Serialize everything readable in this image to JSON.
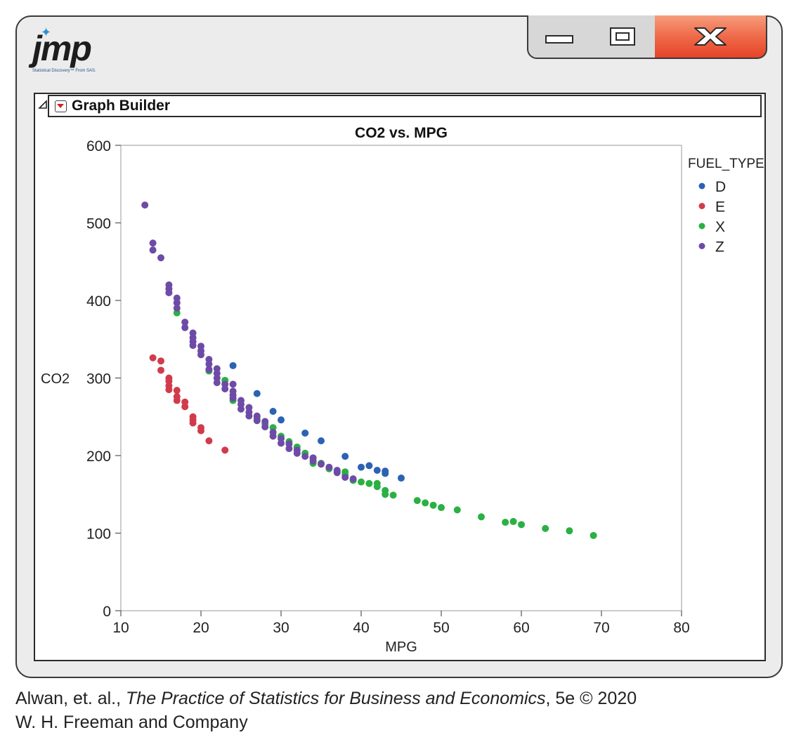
{
  "app": {
    "logo_text": "jmp",
    "logo_tagline": "Statistical Discovery™ From SAS."
  },
  "window_controls": {
    "minimize_icon": "minimize-icon",
    "maximize_icon": "maximize-icon",
    "close_icon": "close-x-icon",
    "close_color": "#e64327"
  },
  "graph_builder": {
    "title": "Graph Builder"
  },
  "chart_data": {
    "type": "scatter",
    "title": "CO2 vs. MPG",
    "xlabel": "MPG",
    "ylabel": "CO2",
    "xlim": [
      10,
      80
    ],
    "ylim": [
      0,
      600
    ],
    "xticks": [
      10,
      20,
      30,
      40,
      50,
      60,
      70,
      80
    ],
    "yticks": [
      0,
      100,
      200,
      300,
      400,
      500,
      600
    ],
    "grid": false,
    "legend": {
      "title": "FUEL_TYPE",
      "placement": "right"
    },
    "series": [
      {
        "name": "D",
        "color": "#2b62b3",
        "points": [
          [
            24,
            316
          ],
          [
            27,
            280
          ],
          [
            29,
            257
          ],
          [
            30,
            246
          ],
          [
            33,
            229
          ],
          [
            35,
            219
          ],
          [
            38,
            199
          ],
          [
            40,
            185
          ],
          [
            41,
            187
          ],
          [
            42,
            181
          ],
          [
            43,
            180
          ],
          [
            43,
            177
          ],
          [
            45,
            171
          ]
        ]
      },
      {
        "name": "E",
        "color": "#d23b4b",
        "points": [
          [
            14,
            326
          ],
          [
            15,
            322
          ],
          [
            15,
            310
          ],
          [
            16,
            300
          ],
          [
            16,
            296
          ],
          [
            16,
            290
          ],
          [
            16,
            285
          ],
          [
            17,
            284
          ],
          [
            17,
            276
          ],
          [
            17,
            271
          ],
          [
            18,
            269
          ],
          [
            18,
            263
          ],
          [
            19,
            250
          ],
          [
            19,
            246
          ],
          [
            19,
            242
          ],
          [
            20,
            236
          ],
          [
            20,
            232
          ],
          [
            21,
            219
          ],
          [
            23,
            207
          ]
        ]
      },
      {
        "name": "X",
        "color": "#2ab043",
        "points": [
          [
            17,
            384
          ],
          [
            21,
            309
          ],
          [
            23,
            297
          ],
          [
            24,
            271
          ],
          [
            27,
            248
          ],
          [
            28,
            241
          ],
          [
            29,
            236
          ],
          [
            30,
            225
          ],
          [
            31,
            218
          ],
          [
            32,
            211
          ],
          [
            33,
            203
          ],
          [
            34,
            197
          ],
          [
            34,
            190
          ],
          [
            35,
            190
          ],
          [
            36,
            183
          ],
          [
            37,
            180
          ],
          [
            38,
            179
          ],
          [
            38,
            175
          ],
          [
            39,
            168
          ],
          [
            40,
            166
          ],
          [
            41,
            164
          ],
          [
            42,
            164
          ],
          [
            42,
            160
          ],
          [
            43,
            155
          ],
          [
            43,
            150
          ],
          [
            44,
            149
          ],
          [
            47,
            142
          ],
          [
            48,
            139
          ],
          [
            49,
            136
          ],
          [
            50,
            133
          ],
          [
            52,
            130
          ],
          [
            55,
            121
          ],
          [
            58,
            114
          ],
          [
            59,
            115
          ],
          [
            60,
            111
          ],
          [
            63,
            106
          ],
          [
            66,
            103
          ],
          [
            69,
            97
          ]
        ]
      },
      {
        "name": "Z",
        "color": "#6d4ba6",
        "points": [
          [
            13,
            523
          ],
          [
            14,
            474
          ],
          [
            14,
            465
          ],
          [
            15,
            455
          ],
          [
            16,
            420
          ],
          [
            16,
            415
          ],
          [
            16,
            410
          ],
          [
            17,
            403
          ],
          [
            17,
            397
          ],
          [
            17,
            390
          ],
          [
            18,
            372
          ],
          [
            18,
            365
          ],
          [
            19,
            358
          ],
          [
            19,
            352
          ],
          [
            19,
            347
          ],
          [
            19,
            342
          ],
          [
            20,
            341
          ],
          [
            20,
            335
          ],
          [
            20,
            330
          ],
          [
            21,
            324
          ],
          [
            21,
            318
          ],
          [
            21,
            311
          ],
          [
            22,
            312
          ],
          [
            22,
            306
          ],
          [
            22,
            300
          ],
          [
            22,
            294
          ],
          [
            23,
            292
          ],
          [
            23,
            286
          ],
          [
            24,
            292
          ],
          [
            24,
            283
          ],
          [
            24,
            278
          ],
          [
            24,
            274
          ],
          [
            25,
            271
          ],
          [
            25,
            266
          ],
          [
            25,
            260
          ],
          [
            26,
            262
          ],
          [
            26,
            256
          ],
          [
            26,
            251
          ],
          [
            27,
            251
          ],
          [
            27,
            245
          ],
          [
            28,
            244
          ],
          [
            28,
            237
          ],
          [
            29,
            230
          ],
          [
            29,
            225
          ],
          [
            30,
            222
          ],
          [
            30,
            216
          ],
          [
            31,
            215
          ],
          [
            31,
            209
          ],
          [
            32,
            207
          ],
          [
            32,
            203
          ],
          [
            33,
            199
          ],
          [
            34,
            197
          ],
          [
            34,
            193
          ],
          [
            35,
            189
          ],
          [
            36,
            185
          ],
          [
            37,
            181
          ],
          [
            37,
            178
          ],
          [
            38,
            172
          ],
          [
            39,
            170
          ]
        ]
      }
    ]
  },
  "caption": {
    "authors": "Alwan, et. al., ",
    "book_title": "The Practice of Statistics for Business and Economics",
    "edition": ", 5e © 2020",
    "publisher": "W. H. Freeman and Company"
  }
}
